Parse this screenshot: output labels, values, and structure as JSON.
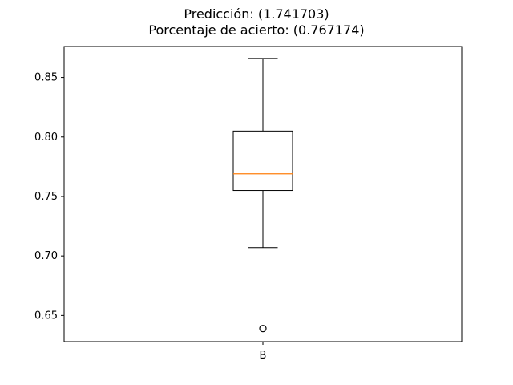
{
  "chart_data": {
    "type": "box",
    "title_line1": "Predicción: (1.741703)",
    "title_line2": "Porcentaje de acierto: (0.767174)",
    "xlabel": "",
    "ylabel": "",
    "ylim": [
      0.628,
      0.876
    ],
    "yticks": [
      0.65,
      0.7,
      0.75,
      0.8,
      0.85
    ],
    "ytick_labels": [
      "0.65",
      "0.70",
      "0.75",
      "0.80",
      "0.85"
    ],
    "categories": [
      "B"
    ],
    "boxes": [
      {
        "category": "B",
        "whisker_low": 0.707,
        "q1": 0.755,
        "median": 0.769,
        "q3": 0.805,
        "whisker_high": 0.866,
        "outliers": [
          0.639
        ]
      }
    ],
    "grid": false,
    "colors": {
      "box": "#000000",
      "median": "#ff7f0e",
      "outlier": "#000000"
    }
  }
}
